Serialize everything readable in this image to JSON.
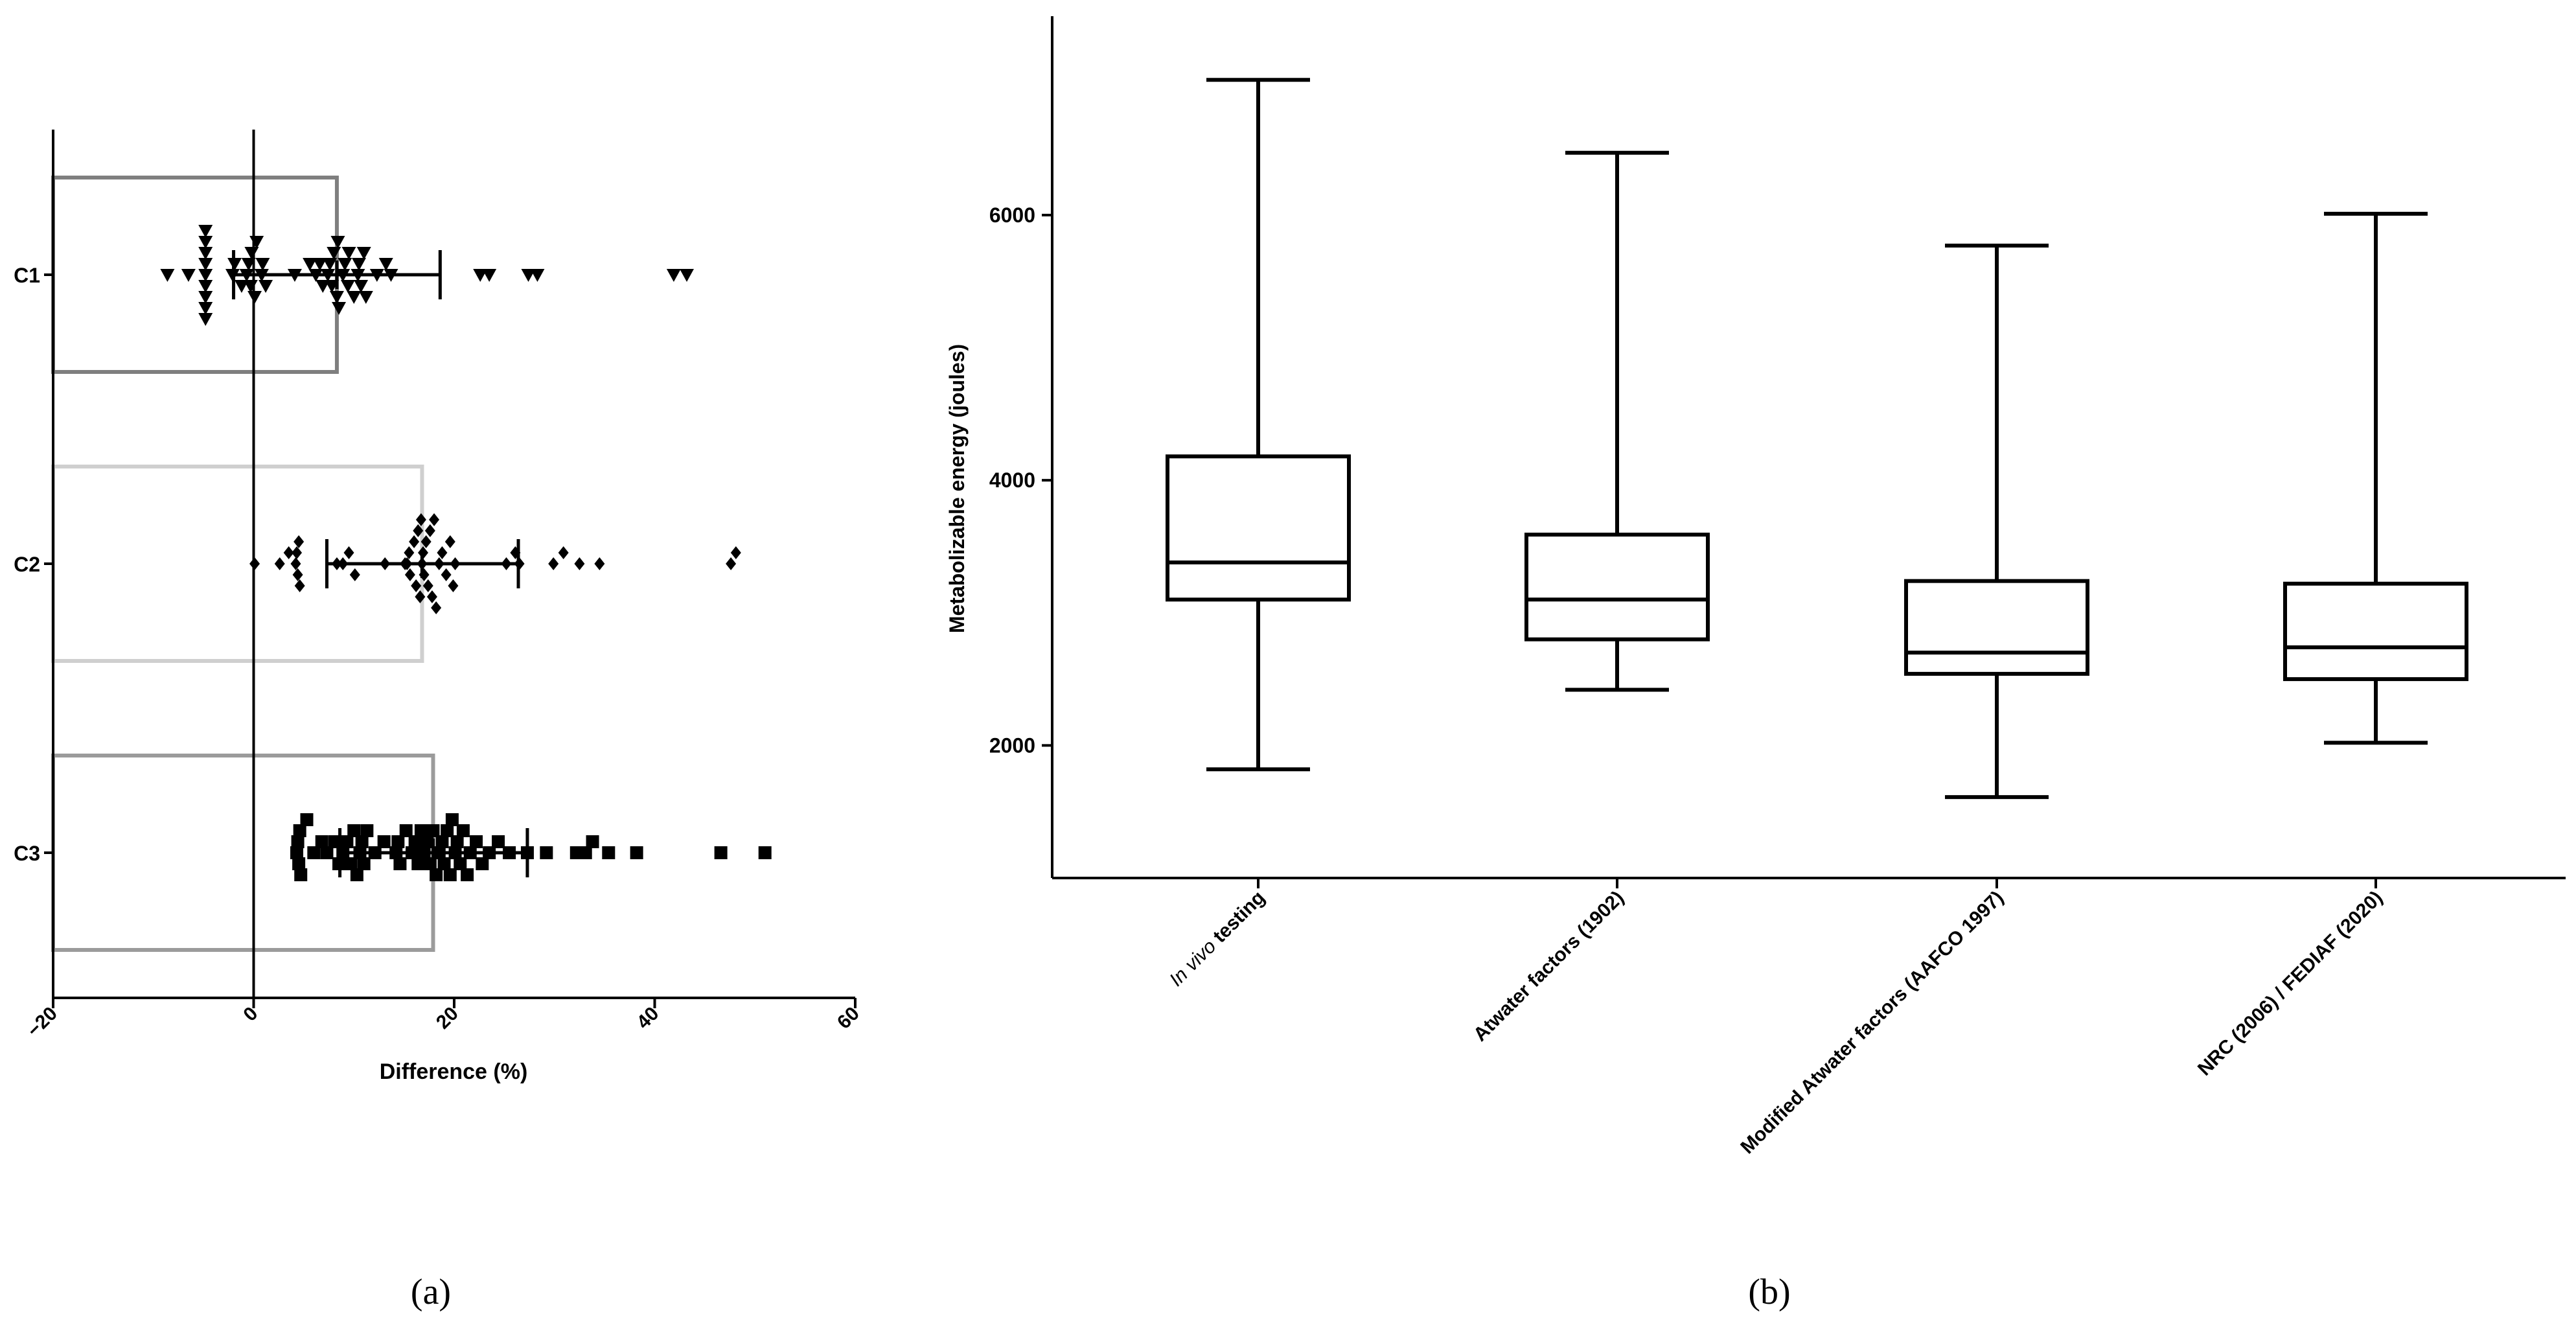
{
  "chart_data": [
    {
      "type": "scatter",
      "panel_label": "(a)",
      "orientation": "horizontal",
      "xlabel": "Difference (%)",
      "ylabel": "",
      "xlim": [
        -20,
        60
      ],
      "x_ticks": [
        {
          "value": -20,
          "label": "−20"
        },
        {
          "value": 0,
          "label": "0"
        },
        {
          "value": 20,
          "label": "20"
        },
        {
          "value": 40,
          "label": "40"
        },
        {
          "value": 60,
          "label": "60"
        }
      ],
      "grid": false,
      "legend": "none",
      "reference_line": {
        "x": 0
      },
      "categories": [
        "C1",
        "C2",
        "C3"
      ],
      "series": [
        {
          "category": "C1",
          "marker": "triangle-down",
          "bar_value": 8.3,
          "bar_color": "#7f7f7f",
          "mean": 8.3,
          "sd_low": -2.0,
          "sd_high": 18.6,
          "points": [
            -8.6,
            -6.5,
            -4.8,
            -4.8,
            -4.8,
            -4.8,
            -4.8,
            -4.8,
            -4.8,
            -4.8,
            -4.8,
            -2.1,
            -1.9,
            -1.2,
            -0.7,
            -0.5,
            -0.3,
            -0.2,
            0.1,
            0.3,
            0.8,
            0.9,
            1.2,
            4.1,
            5.6,
            6.2,
            6.6,
            6.9,
            7.4,
            7.6,
            7.8,
            8.0,
            8.3,
            8.4,
            8.5,
            8.9,
            9.1,
            9.4,
            9.5,
            10.0,
            10.4,
            10.5,
            10.7,
            11.0,
            11.2,
            12.3,
            13.2,
            13.7,
            22.6,
            23.5,
            27.4,
            28.3,
            41.9,
            43.2
          ]
        },
        {
          "category": "C2",
          "marker": "diamond",
          "bar_value": 16.8,
          "bar_color": "#cfcfcf",
          "mean": 16.8,
          "sd_low": 7.3,
          "sd_high": 26.4,
          "points": [
            0.1,
            2.6,
            3.5,
            4.2,
            4.3,
            4.4,
            4.5,
            4.6,
            8.3,
            8.9,
            9.5,
            10.1,
            13.1,
            15.1,
            15.3,
            15.5,
            15.6,
            16.0,
            16.2,
            16.4,
            16.6,
            16.7,
            16.8,
            16.9,
            17.0,
            17.2,
            17.4,
            17.6,
            17.8,
            18.0,
            18.2,
            18.5,
            18.8,
            19.2,
            19.6,
            19.9,
            20.1,
            25.2,
            26.1,
            26.5,
            29.9,
            30.9,
            32.5,
            34.5,
            47.6,
            48.1
          ]
        },
        {
          "category": "C3",
          "marker": "square",
          "bar_value": 17.9,
          "bar_color": "#9b9b9b",
          "mean": 17.9,
          "sd_low": 8.6,
          "sd_high": 27.3,
          "points": [
            4.3,
            4.4,
            4.5,
            4.6,
            4.7,
            5.3,
            6.0,
            6.8,
            7.3,
            8.1,
            8.5,
            8.9,
            9.3,
            9.7,
            10.0,
            10.3,
            10.6,
            10.8,
            11.0,
            11.3,
            12.1,
            13.0,
            14.2,
            14.4,
            14.6,
            15.2,
            15.8,
            16.1,
            16.4,
            16.7,
            17.0,
            17.3,
            17.6,
            17.9,
            18.2,
            18.5,
            18.8,
            19.0,
            19.3,
            19.6,
            19.8,
            20.1,
            20.3,
            20.6,
            20.9,
            21.3,
            21.6,
            22.2,
            22.8,
            23.5,
            24.4,
            25.5,
            27.3,
            29.2,
            32.2,
            33.1,
            33.8,
            35.4,
            38.2,
            46.6,
            51.0
          ]
        }
      ]
    },
    {
      "type": "box",
      "panel_label": "(b)",
      "ylabel": "Metabolizable energy (joules)",
      "xlabel": "",
      "ylim": [
        1000,
        7500
      ],
      "y_ticks": [
        2000,
        4000,
        6000
      ],
      "grid": false,
      "legend": "none",
      "categories": [
        {
          "italic": "In vivo",
          "text": " testing"
        },
        {
          "italic": "",
          "text": "Atwater factors (1902)"
        },
        {
          "italic": "",
          "text": "Modified Atwater factors (AAFCO 1997)"
        },
        {
          "italic": "",
          "text": "NRC (2006) / FEDIAF (2020)"
        }
      ],
      "boxes": [
        {
          "min": 1820,
          "q1": 3100,
          "median": 3380,
          "q3": 4180,
          "max": 7020
        },
        {
          "min": 2420,
          "q1": 2800,
          "median": 3100,
          "q3": 3590,
          "max": 6470
        },
        {
          "min": 1610,
          "q1": 2540,
          "median": 2700,
          "q3": 3240,
          "max": 5770
        },
        {
          "min": 2020,
          "q1": 2500,
          "median": 2740,
          "q3": 3220,
          "max": 6010
        }
      ]
    }
  ]
}
